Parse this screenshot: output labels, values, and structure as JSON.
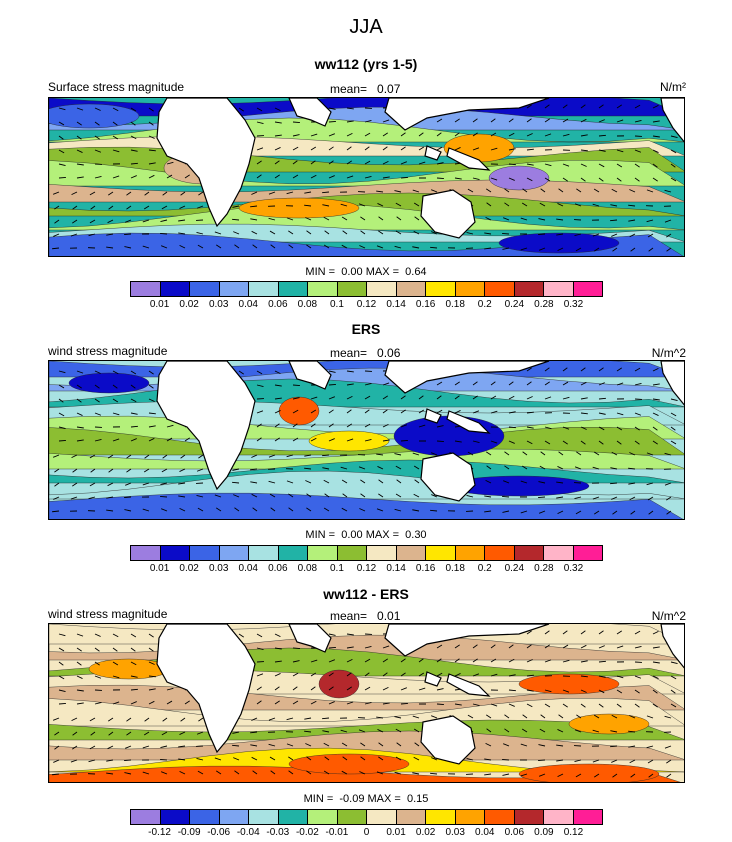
{
  "title": "JJA",
  "panels": [
    {
      "title": "ww112 (yrs 1-5)",
      "label": "Surface stress magnitude",
      "mean_label": "mean=",
      "mean": "0.07",
      "units": "N/m²",
      "min_label": "MIN =",
      "min": "0.00",
      "max_label": "MAX =",
      "max": "0.64",
      "ticks": [
        "0.01",
        "0.02",
        "0.03",
        "0.04",
        "0.06",
        "0.08",
        "0.1",
        "0.12",
        "0.14",
        "0.16",
        "0.18",
        "0.2",
        "0.24",
        "0.28",
        "0.32"
      ],
      "colors": [
        "#9c7de0",
        "#0b0bc8",
        "#3b64e6",
        "#7ea6f2",
        "#a8e2e2",
        "#21b3a6",
        "#b4f07a",
        "#8cbe32",
        "#f5e8c2",
        "#dcb48e",
        "#ffe600",
        "#ffa300",
        "#ff5a00",
        "#b4282c",
        "#ffb4c8",
        "#ff1e96"
      ],
      "bg_fill": 5
    },
    {
      "title": "ERS",
      "label": "wind stress magnitude",
      "mean_label": "mean=",
      "mean": "0.06",
      "units": "N/m^2",
      "min_label": "MIN =",
      "min": "0.00",
      "max_label": "MAX =",
      "max": "0.30",
      "ticks": [
        "0.01",
        "0.02",
        "0.03",
        "0.04",
        "0.06",
        "0.08",
        "0.1",
        "0.12",
        "0.14",
        "0.16",
        "0.18",
        "0.2",
        "0.24",
        "0.28",
        "0.32"
      ],
      "colors": [
        "#9c7de0",
        "#0b0bc8",
        "#3b64e6",
        "#7ea6f2",
        "#a8e2e2",
        "#21b3a6",
        "#b4f07a",
        "#8cbe32",
        "#f5e8c2",
        "#dcb48e",
        "#ffe600",
        "#ffa300",
        "#ff5a00",
        "#b4282c",
        "#ffb4c8",
        "#ff1e96"
      ],
      "bg_fill": 4
    },
    {
      "title": "ww112 - ERS",
      "label": "wind stress magnitude",
      "mean_label": "mean=",
      "mean": "0.01",
      "units": "N/m^2",
      "min_label": "MIN =",
      "min": "-0.09",
      "max_label": "MAX =",
      "max": "0.15",
      "ticks": [
        "-0.12",
        "-0.09",
        "-0.06",
        "-0.04",
        "-0.03",
        "-0.02",
        "-0.01",
        "0",
        "0.01",
        "0.02",
        "0.03",
        "0.04",
        "0.06",
        "0.09",
        "0.12"
      ],
      "colors": [
        "#9c7de0",
        "#0b0bc8",
        "#3b64e6",
        "#7ea6f2",
        "#a8e2e2",
        "#21b3a6",
        "#b4f07a",
        "#8cbe32",
        "#f5e8c2",
        "#dcb48e",
        "#ffe600",
        "#ffa300",
        "#ff5a00",
        "#b4282c",
        "#ffb4c8",
        "#ff1e96"
      ],
      "bg_fill": 8
    }
  ]
}
